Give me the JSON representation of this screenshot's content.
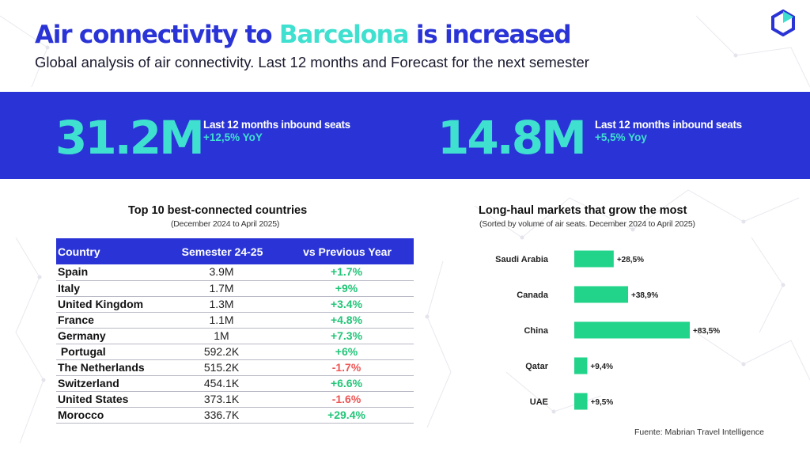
{
  "header": {
    "title_before": "Air connectivity to",
    "title_accent": "Barcelona",
    "title_after": "is increased",
    "subtitle": "Global analysis of air connectivity. Last 12 months and Forecast for the next semester"
  },
  "kpis": [
    {
      "value": "31.2M",
      "label": "Last 12 months inbound seats",
      "delta": "+12,5% YoY"
    },
    {
      "value": "14.8M",
      "label": "Last 12 months inbound seats",
      "delta": "+5,5% Yoy"
    }
  ],
  "countries_table": {
    "title": "Top 10 best-connected countries",
    "subtitle": "(December 2024 to April 2025)",
    "headers": [
      "Country",
      "Semester 24-25",
      "vs Previous Year"
    ],
    "rows": [
      {
        "country": "Spain",
        "semester": "3.9M",
        "change": "+1.7%",
        "trend": "pos"
      },
      {
        "country": "Italy",
        "semester": "1.7M",
        "change": "+9%",
        "trend": "pos"
      },
      {
        "country": "United Kingdom",
        "semester": "1.3M",
        "change": "+3.4%",
        "trend": "pos"
      },
      {
        "country": "France",
        "semester": "1.1M",
        "change": "+4.8%",
        "trend": "pos"
      },
      {
        "country": "Germany",
        "semester": "1M",
        "change": "+7.3%",
        "trend": "pos"
      },
      {
        "country": " Portugal",
        "semester": "592.2K",
        "change": "+6%",
        "trend": "pos"
      },
      {
        "country": "The Netherlands",
        "semester": "515.2K",
        "change": "-1.7%",
        "trend": "neg"
      },
      {
        "country": "Switzerland",
        "semester": "454.1K",
        "change": "+6.6%",
        "trend": "pos"
      },
      {
        "country": "United States",
        "semester": "373.1K",
        "change": "-1.6%",
        "trend": "neg"
      },
      {
        "country": "Morocco",
        "semester": "336.7K",
        "change": "+29.4%",
        "trend": "pos"
      }
    ]
  },
  "chart_data": {
    "type": "bar",
    "orientation": "horizontal",
    "title": "Long-haul markets that grow the most",
    "subtitle": "(Sorted by volume of air seats. December 2024 to April 2025)",
    "categories": [
      "Saudi Arabia",
      "Canada",
      "China",
      "Qatar",
      "UAE"
    ],
    "values": [
      28.5,
      38.9,
      83.5,
      9.4,
      9.5
    ],
    "data_labels": [
      "+28,5%",
      "+38,9%",
      "+83,5%",
      "+9,4%",
      "+9,5%"
    ],
    "xlim": [
      0,
      83.5
    ],
    "grid": false,
    "legend": "none",
    "bar_color": "#22d38a"
  },
  "source": "Fuente: Mabrian Travel Intelligence",
  "colors": {
    "primary": "#2a34d6",
    "accent": "#3fe0d0",
    "positive": "#22c578",
    "negative": "#ee5555"
  }
}
